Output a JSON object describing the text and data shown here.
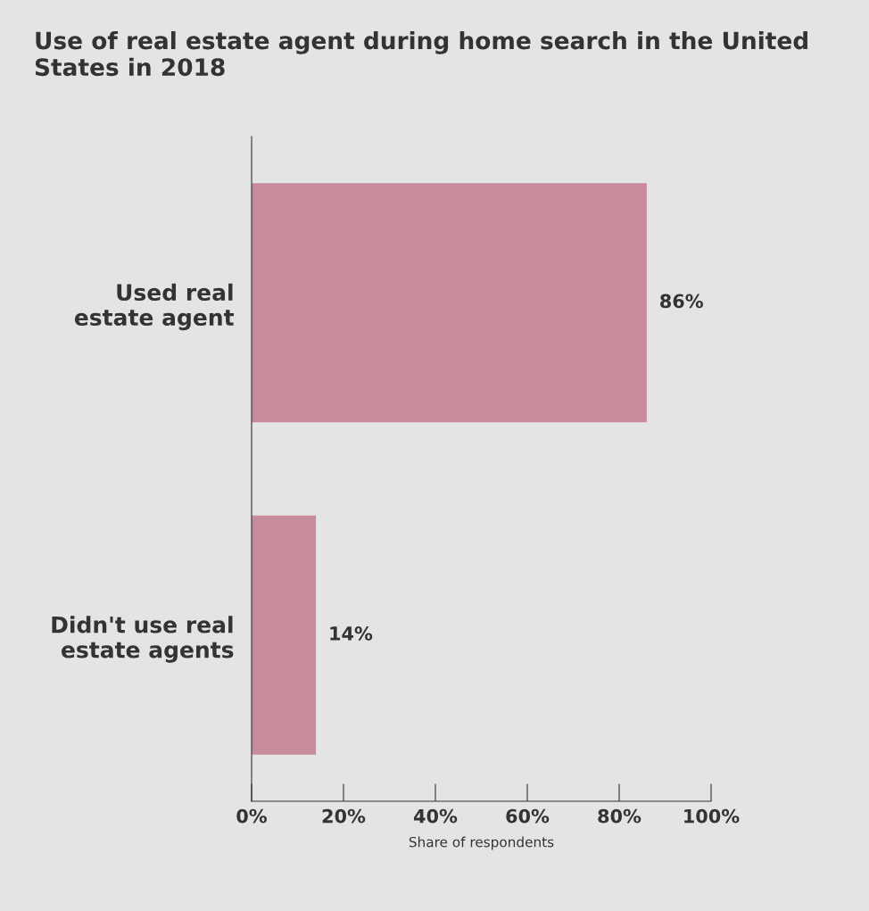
{
  "chart_data": {
    "type": "bar",
    "orientation": "horizontal",
    "title": "Use of real estate agent during home search in the United States in 2018",
    "categories": [
      "Used real\nestate agent",
      "Didn't use real\nestate agents"
    ],
    "values": [
      86,
      14
    ],
    "value_labels": [
      "86%",
      "14%"
    ],
    "color": "#c88b9c",
    "xlabel": "Share of respondents",
    "xlim": [
      0,
      100
    ],
    "xticks": [
      {
        "value": 0,
        "label": "0%"
      },
      {
        "value": 20,
        "label": "20%"
      },
      {
        "value": 40,
        "label": "40%"
      },
      {
        "value": 60,
        "label": "60%"
      },
      {
        "value": 80,
        "label": "80%"
      },
      {
        "value": 100,
        "label": "100%"
      }
    ],
    "grid": false,
    "legend": false
  }
}
